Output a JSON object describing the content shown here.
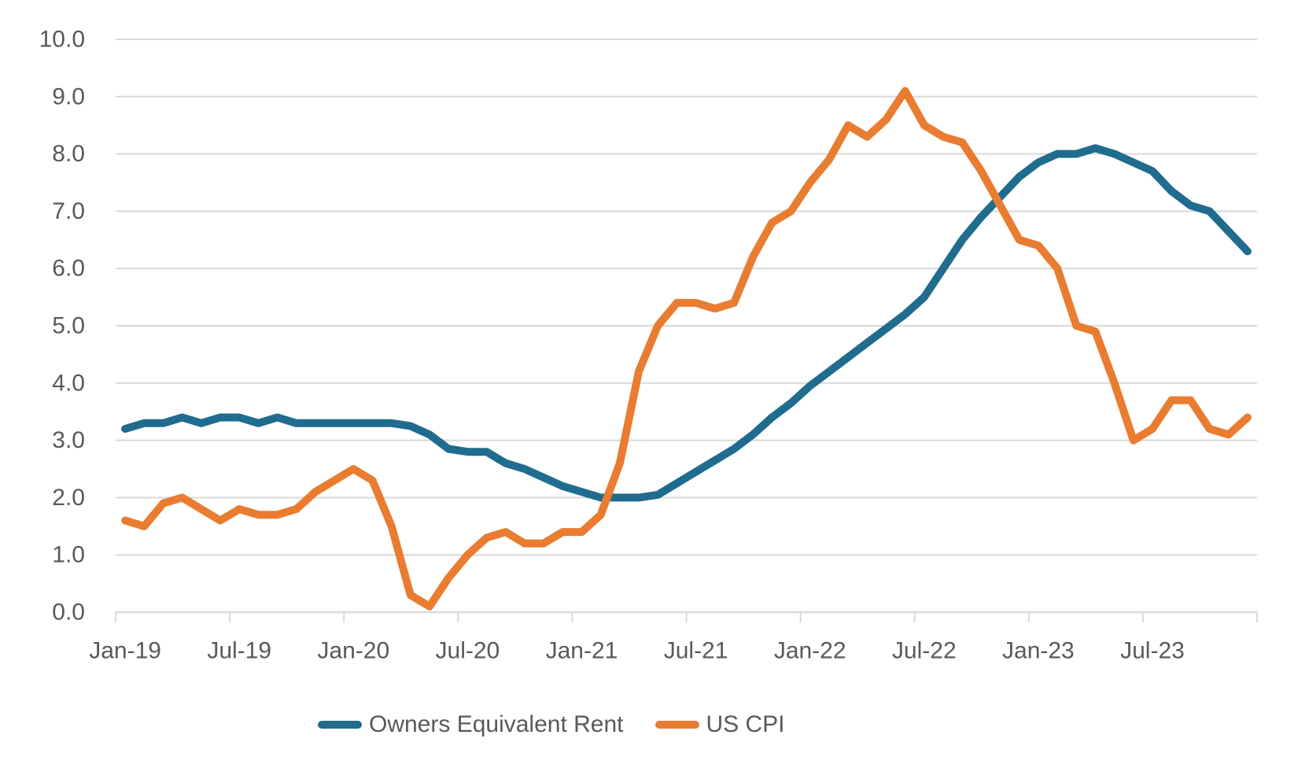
{
  "chart_data": {
    "type": "line",
    "title": "",
    "xlabel": "",
    "ylabel": "",
    "grid": true,
    "legend_position": "bottom",
    "background": "#FFFFFF",
    "axis_color": "#D9D9D9",
    "label_color": "#595959",
    "ylim": [
      0,
      10
    ],
    "ytick_step": 1.0,
    "yticks": [
      "0.0",
      "1.0",
      "2.0",
      "3.0",
      "4.0",
      "5.0",
      "6.0",
      "7.0",
      "8.0",
      "9.0",
      "10.0"
    ],
    "xticks": [
      "Jan-19",
      "Jul-19",
      "Jan-20",
      "Jul-20",
      "Jan-21",
      "Jul-21",
      "Jan-22",
      "Jul-22",
      "Jan-23",
      "Jul-23"
    ],
    "xtick_every": 6,
    "x": [
      "Jan-19",
      "Feb-19",
      "Mar-19",
      "Apr-19",
      "May-19",
      "Jun-19",
      "Jul-19",
      "Aug-19",
      "Sep-19",
      "Oct-19",
      "Nov-19",
      "Dec-19",
      "Jan-20",
      "Feb-20",
      "Mar-20",
      "Apr-20",
      "May-20",
      "Jun-20",
      "Jul-20",
      "Aug-20",
      "Sep-20",
      "Oct-20",
      "Nov-20",
      "Dec-20",
      "Jan-21",
      "Feb-21",
      "Mar-21",
      "Apr-21",
      "May-21",
      "Jun-21",
      "Jul-21",
      "Aug-21",
      "Sep-21",
      "Oct-21",
      "Nov-21",
      "Dec-21",
      "Jan-22",
      "Feb-22",
      "Mar-22",
      "Apr-22",
      "May-22",
      "Jun-22",
      "Jul-22",
      "Aug-22",
      "Sep-22",
      "Oct-22",
      "Nov-22",
      "Dec-22",
      "Jan-23",
      "Feb-23",
      "Mar-23",
      "Apr-23",
      "May-23",
      "Jun-23",
      "Jul-23",
      "Aug-23",
      "Sep-23",
      "Oct-23",
      "Nov-23",
      "Dec-23"
    ],
    "series": [
      {
        "name": "Owners Equivalent Rent",
        "color": "#1F6C8E",
        "values": [
          3.2,
          3.3,
          3.3,
          3.4,
          3.3,
          3.4,
          3.4,
          3.3,
          3.4,
          3.3,
          3.3,
          3.3,
          3.3,
          3.3,
          3.3,
          3.25,
          3.1,
          2.85,
          2.8,
          2.8,
          2.6,
          2.5,
          2.35,
          2.2,
          2.1,
          2.0,
          2.0,
          2.0,
          2.05,
          2.25,
          2.45,
          2.65,
          2.85,
          3.1,
          3.4,
          3.65,
          3.95,
          4.2,
          4.45,
          4.7,
          4.95,
          5.2,
          5.5,
          6.0,
          6.5,
          6.9,
          7.25,
          7.6,
          7.85,
          8.0,
          8.0,
          8.1,
          8.0,
          7.85,
          7.7,
          7.35,
          7.1,
          7.0,
          6.65,
          6.3
        ]
      },
      {
        "name": "US CPI",
        "color": "#E97C30",
        "values": [
          1.6,
          1.5,
          1.9,
          2.0,
          1.8,
          1.6,
          1.8,
          1.7,
          1.7,
          1.8,
          2.1,
          2.3,
          2.5,
          2.3,
          1.5,
          0.3,
          0.1,
          0.6,
          1.0,
          1.3,
          1.4,
          1.2,
          1.2,
          1.4,
          1.4,
          1.7,
          2.6,
          4.2,
          5.0,
          5.4,
          5.4,
          5.3,
          5.4,
          6.2,
          6.8,
          7.0,
          7.5,
          7.9,
          8.5,
          8.3,
          8.6,
          9.1,
          8.5,
          8.3,
          8.2,
          7.7,
          7.1,
          6.5,
          6.4,
          6.0,
          5.0,
          4.9,
          4.0,
          3.0,
          3.2,
          3.7,
          3.7,
          3.2,
          3.1,
          3.4
        ]
      }
    ]
  }
}
